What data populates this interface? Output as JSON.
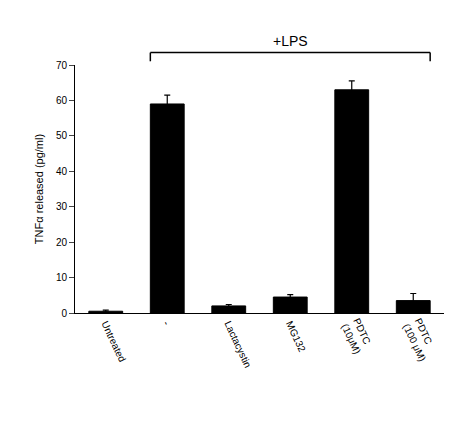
{
  "chart_data": {
    "type": "bar",
    "categories": [
      "Untreated",
      "-",
      "Lactacystin",
      "MG132",
      "PDTC\n(10μM)",
      "PDTC\n(100 μM)"
    ],
    "values": [
      0.5,
      59.0,
      2.0,
      4.5,
      63.0,
      3.5
    ],
    "errors": [
      0.3,
      2.5,
      0.4,
      0.7,
      2.5,
      2.0
    ],
    "color": "#000000",
    "ylabel": "TNFα released (pg/ml)",
    "ylim": [
      0,
      70
    ],
    "yticks": [
      0,
      10,
      20,
      30,
      40,
      50,
      60,
      70
    ],
    "grid": false,
    "annotations": [
      {
        "text": "+LPS",
        "from": "-",
        "to": "PDTC\n(100 μM)"
      }
    ]
  }
}
